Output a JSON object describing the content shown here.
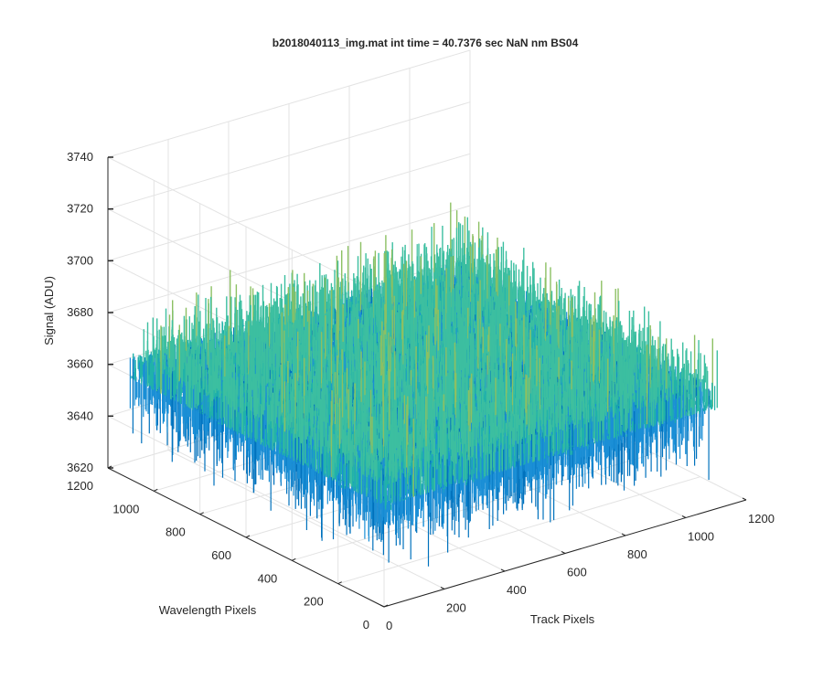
{
  "chart_data": {
    "type": "surface",
    "title": "b2018040113_img.mat int time = 40.7376 sec  NaN nm BS04",
    "zlabel": "Signal (ADU)",
    "xlabel": "Track Pixels",
    "ylabel": "Wavelength Pixels",
    "zlim": [
      3620,
      3740
    ],
    "xlim": [
      0,
      1200
    ],
    "ylim": [
      0,
      1200
    ],
    "z_ticks": [
      "3620",
      "3640",
      "3660",
      "3680",
      "3700",
      "3720",
      "3740"
    ],
    "x_ticks": [
      "0",
      "200",
      "400",
      "600",
      "800",
      "1000",
      "1200"
    ],
    "y_ticks": [
      "0",
      "200",
      "400",
      "600",
      "800",
      "1000",
      "1200"
    ],
    "data_extent": {
      "track_pixels": [
        0,
        1100
      ],
      "wavelength_pixels": [
        0,
        1100
      ]
    },
    "signal_range": [
      3628,
      3728
    ],
    "signal_mean": 3665,
    "grid": true,
    "colors": [
      "#0072bd",
      "#1b8fd6",
      "#20b2aa",
      "#3cbfa0",
      "#8cc063",
      "#d8b93a",
      "#edb120"
    ]
  }
}
